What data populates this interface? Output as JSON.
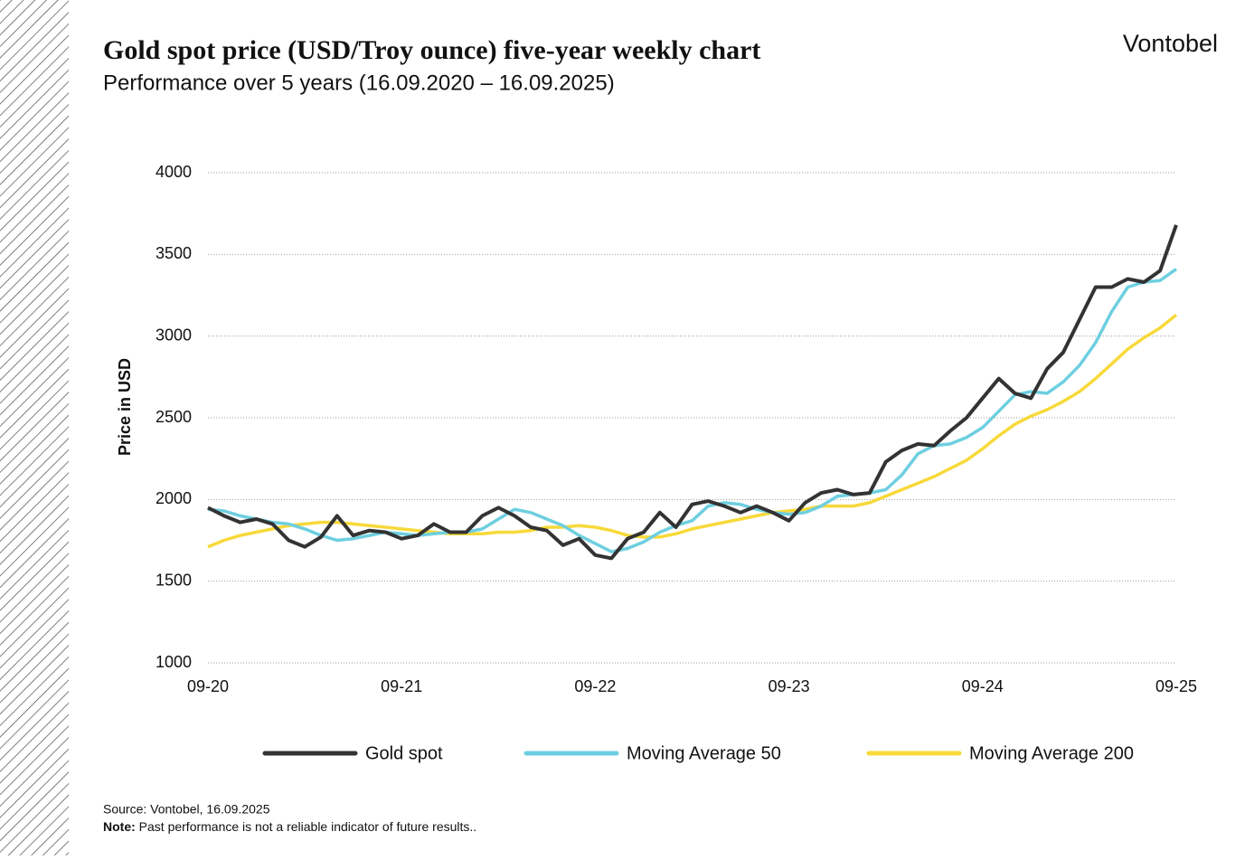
{
  "brand": "Vontobel",
  "chart_data": {
    "type": "line",
    "title": "Gold spot price (USD/Troy ounce) five-year weekly chart",
    "subtitle": "Performance over 5 years (16.09.2020 – 16.09.2025)",
    "y_label": "Price in USD",
    "source": "Source: Vontobel, 16.09.2025",
    "note_label": "Note:",
    "note_text": "Past performance is not a reliable indicator of future results..",
    "categories": [
      "09-20",
      null,
      null,
      null,
      null,
      null,
      null,
      null,
      null,
      null,
      null,
      null,
      "09-21",
      null,
      null,
      null,
      null,
      null,
      null,
      null,
      null,
      null,
      null,
      null,
      "09-22",
      null,
      null,
      null,
      null,
      null,
      null,
      null,
      null,
      null,
      null,
      null,
      "09-23",
      null,
      null,
      null,
      null,
      null,
      null,
      null,
      null,
      null,
      null,
      null,
      "09-24",
      null,
      null,
      null,
      null,
      null,
      null,
      null,
      null,
      null,
      null,
      null,
      "09-25"
    ],
    "ylim": [
      1000,
      4000
    ],
    "yticks": [
      1000,
      1500,
      2000,
      2500,
      3000,
      3500,
      4000
    ],
    "grid": true,
    "series": [
      {
        "name": "Gold spot",
        "color": "#333333",
        "values": [
          1950,
          1900,
          1860,
          1880,
          1850,
          1750,
          1710,
          1770,
          1900,
          1780,
          1810,
          1800,
          1760,
          1780,
          1850,
          1800,
          1800,
          1900,
          1950,
          1900,
          1830,
          1810,
          1720,
          1760,
          1660,
          1640,
          1760,
          1800,
          1920,
          1830,
          1970,
          1990,
          1960,
          1920,
          1960,
          1920,
          1870,
          1980,
          2040,
          2060,
          2030,
          2040,
          2230,
          2300,
          2340,
          2330,
          2420,
          2500,
          2620,
          2740,
          2650,
          2620,
          2800,
          2900,
          3100,
          3300,
          3300,
          3350,
          3330,
          3400,
          3680
        ]
      },
      {
        "name": "Moving Average 50",
        "color": "#6ecfe0",
        "values": [
          1940,
          1930,
          1900,
          1880,
          1860,
          1850,
          1820,
          1780,
          1750,
          1760,
          1780,
          1800,
          1790,
          1780,
          1790,
          1800,
          1800,
          1820,
          1880,
          1940,
          1920,
          1880,
          1840,
          1780,
          1730,
          1680,
          1700,
          1740,
          1800,
          1840,
          1870,
          1960,
          1980,
          1970,
          1940,
          1920,
          1910,
          1920,
          1960,
          2020,
          2030,
          2040,
          2060,
          2150,
          2280,
          2330,
          2340,
          2380,
          2440,
          2540,
          2640,
          2660,
          2650,
          2720,
          2820,
          2960,
          3150,
          3300,
          3330,
          3340,
          3410
        ]
      },
      {
        "name": "Moving Average 200",
        "color": "#f7d93a",
        "values": [
          1710,
          1750,
          1780,
          1800,
          1820,
          1840,
          1850,
          1860,
          1860,
          1850,
          1840,
          1830,
          1820,
          1810,
          1800,
          1790,
          1790,
          1790,
          1800,
          1800,
          1810,
          1830,
          1830,
          1840,
          1830,
          1810,
          1780,
          1770,
          1770,
          1790,
          1820,
          1840,
          1860,
          1880,
          1900,
          1920,
          1930,
          1940,
          1960,
          1960,
          1960,
          1980,
          2020,
          2060,
          2100,
          2140,
          2190,
          2240,
          2310,
          2390,
          2460,
          2510,
          2550,
          2600,
          2660,
          2740,
          2830,
          2920,
          2990,
          3050,
          3130
        ]
      }
    ]
  }
}
